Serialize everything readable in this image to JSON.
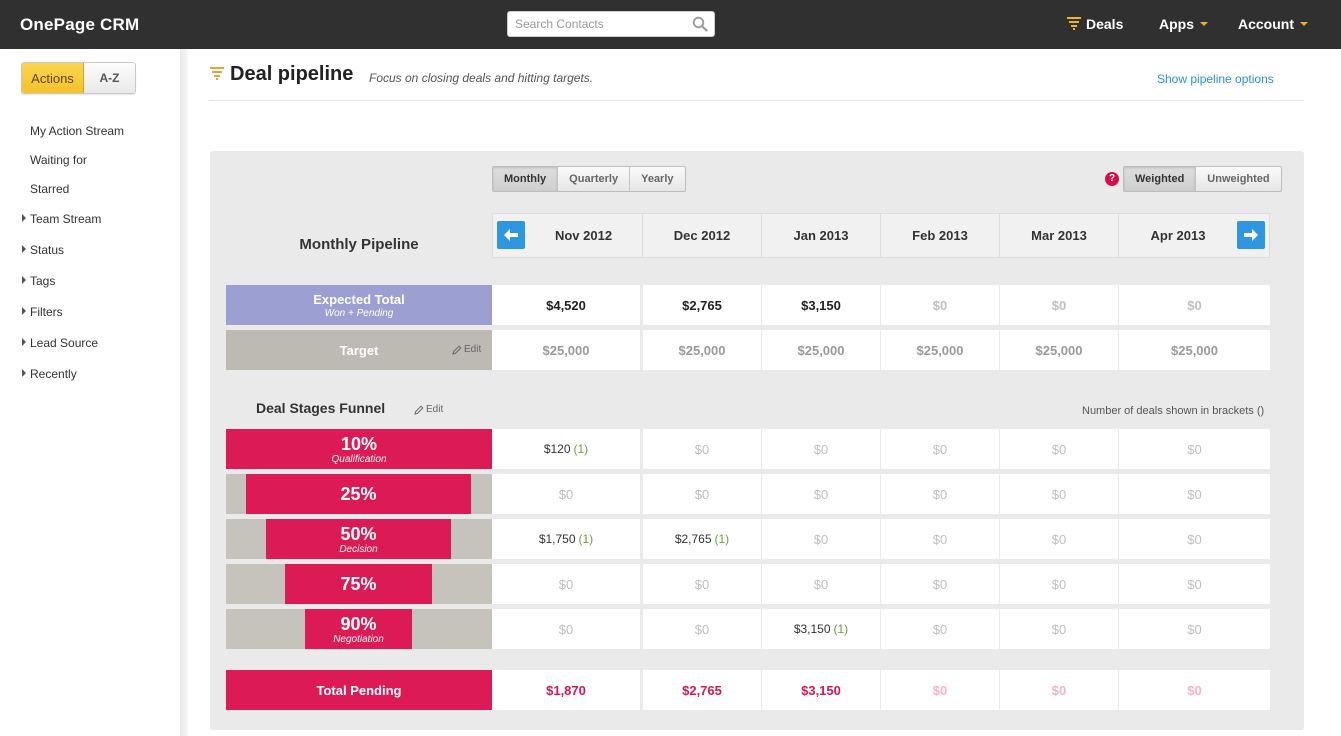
{
  "app": {
    "logo": "OnePage CRM"
  },
  "topbar": {
    "search_placeholder": "Search Contacts",
    "nav": {
      "deals": "Deals",
      "apps": "Apps",
      "account": "Account"
    }
  },
  "sidebar": {
    "toggle": {
      "actions": "Actions",
      "az": "A-Z"
    },
    "items": [
      "My Action Stream",
      "Waiting for",
      "Starred"
    ],
    "groups": [
      "Team Stream",
      "Status",
      "Tags",
      "Filters",
      "Lead Source",
      "Recently"
    ]
  },
  "header": {
    "title": "Deal pipeline",
    "subtitle": "Focus on closing deals and hitting targets.",
    "options_link": "Show pipeline options"
  },
  "pipeline": {
    "period_buttons": [
      "Monthly",
      "Quarterly",
      "Yearly"
    ],
    "active_period": "Monthly",
    "weight_buttons": [
      "Weighted",
      "Unweighted"
    ],
    "active_weight": "Weighted",
    "help": "?",
    "label": "Monthly Pipeline",
    "months": [
      "Nov 2012",
      "Dec 2012",
      "Jan 2013",
      "Feb 2013",
      "Mar 2013",
      "Apr 2013"
    ],
    "expected": {
      "label": "Expected Total",
      "sub": "Won + Pending",
      "values": [
        "$4,520",
        "$2,765",
        "$3,150",
        "$0",
        "$0",
        "$0"
      ]
    },
    "target": {
      "label": "Target",
      "edit": "Edit",
      "values": [
        "$25,000",
        "$25,000",
        "$25,000",
        "$25,000",
        "$25,000",
        "$25,000"
      ]
    },
    "funnel": {
      "title": "Deal Stages Funnel",
      "edit": "Edit",
      "note": "Number of deals shown in brackets ()",
      "stages": [
        {
          "pct": "10%",
          "name": "Qualification",
          "cells": [
            [
              "$120",
              "(1)"
            ],
            [
              "$0",
              ""
            ],
            [
              "$0",
              ""
            ],
            [
              "$0",
              ""
            ],
            [
              "$0",
              ""
            ],
            [
              "$0",
              ""
            ]
          ]
        },
        {
          "pct": "25%",
          "name": "",
          "cells": [
            [
              "$0",
              ""
            ],
            [
              "$0",
              ""
            ],
            [
              "$0",
              ""
            ],
            [
              "$0",
              ""
            ],
            [
              "$0",
              ""
            ],
            [
              "$0",
              ""
            ]
          ]
        },
        {
          "pct": "50%",
          "name": "Decision",
          "cells": [
            [
              "$1,750",
              "(1)"
            ],
            [
              "$2,765",
              "(1)"
            ],
            [
              "$0",
              ""
            ],
            [
              "$0",
              ""
            ],
            [
              "$0",
              ""
            ],
            [
              "$0",
              ""
            ]
          ]
        },
        {
          "pct": "75%",
          "name": "",
          "cells": [
            [
              "$0",
              ""
            ],
            [
              "$0",
              ""
            ],
            [
              "$0",
              ""
            ],
            [
              "$0",
              ""
            ],
            [
              "$0",
              ""
            ],
            [
              "$0",
              ""
            ]
          ]
        },
        {
          "pct": "90%",
          "name": "Negotiation",
          "cells": [
            [
              "$0",
              ""
            ],
            [
              "$0",
              ""
            ],
            [
              "$3,150",
              "(1)"
            ],
            [
              "$0",
              ""
            ],
            [
              "$0",
              ""
            ],
            [
              "$0",
              ""
            ]
          ]
        }
      ]
    },
    "total_pending": {
      "label": "Total Pending",
      "values": [
        "$1,870",
        "$2,765",
        "$3,150",
        "$0",
        "$0",
        "$0"
      ]
    }
  },
  "colors": {
    "accent": "#dc1a55",
    "expected": "#9b9fd1",
    "target": "#bdb9b3",
    "link": "#2b8fd1",
    "topbar": "#303030",
    "toggle": "#f4c22b"
  }
}
